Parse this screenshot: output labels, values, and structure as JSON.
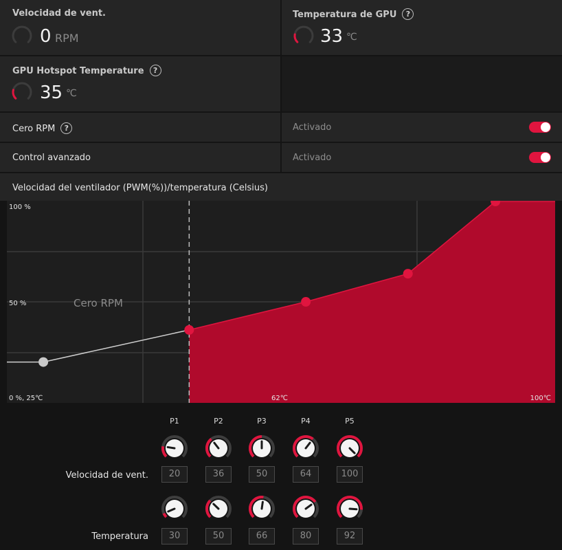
{
  "metrics": {
    "fan_speed": {
      "title": "Velocidad de vent.",
      "value": "0",
      "unit": "RPM",
      "gauge_fraction": 0
    },
    "gpu_temp": {
      "title": "Temperatura de GPU",
      "value": "33",
      "unit": "℃",
      "gauge_fraction": 0.2
    },
    "hotspot_temp": {
      "title": "GPU Hotspot Temperature",
      "value": "35",
      "unit": "℃",
      "gauge_fraction": 0.22
    }
  },
  "settings": {
    "zero_rpm": {
      "label": "Cero RPM",
      "status": "Activado",
      "enabled": true
    },
    "advanced_control": {
      "label": "Control avanzado",
      "status": "Activado",
      "enabled": true
    }
  },
  "chart_title": "Velocidad del ventilador (PWM(%))/temperatura (Celsius)",
  "chart_data": {
    "type": "area",
    "x_unit": "°C",
    "y_unit": "%",
    "xlim": [
      25,
      100
    ],
    "ylim": [
      0,
      100
    ],
    "tick_labels": {
      "y_top": "100 %",
      "y_mid": "50 %",
      "origin": "0 %, 25℃",
      "x_mid": "62℃",
      "x_right": "100℃"
    },
    "zero_rpm_label": "Cero RPM",
    "zero_rpm_line": [
      {
        "x": 25,
        "y": 20
      },
      {
        "x": 30,
        "y": 20
      },
      {
        "x": 50,
        "y": 36
      }
    ],
    "points": [
      {
        "name": "P1",
        "x": 30,
        "y": 20
      },
      {
        "name": "P2",
        "x": 50,
        "y": 36
      },
      {
        "name": "P3",
        "x": 66,
        "y": 50
      },
      {
        "name": "P4",
        "x": 80,
        "y": 64
      },
      {
        "name": "P5",
        "x": 92,
        "y": 100
      }
    ],
    "accent": "#b00a2c",
    "point_color": "#e0153f",
    "grid": true
  },
  "knobs": {
    "row_fan_label": "Velocidad de vent.",
    "row_temp_label": "Temperatura",
    "points": [
      {
        "label": "P1",
        "fan": "20",
        "temp": "30",
        "fan_frac": 0.2,
        "temp_frac": 0.08
      },
      {
        "label": "P2",
        "fan": "36",
        "temp": "50",
        "fan_frac": 0.36,
        "temp_frac": 0.33
      },
      {
        "label": "P3",
        "fan": "50",
        "temp": "66",
        "fan_frac": 0.5,
        "temp_frac": 0.53
      },
      {
        "label": "P4",
        "fan": "64",
        "temp": "80",
        "fan_frac": 0.64,
        "temp_frac": 0.7
      },
      {
        "label": "P5",
        "fan": "100",
        "temp": "92",
        "fan_frac": 1.0,
        "temp_frac": 0.85
      }
    ]
  }
}
